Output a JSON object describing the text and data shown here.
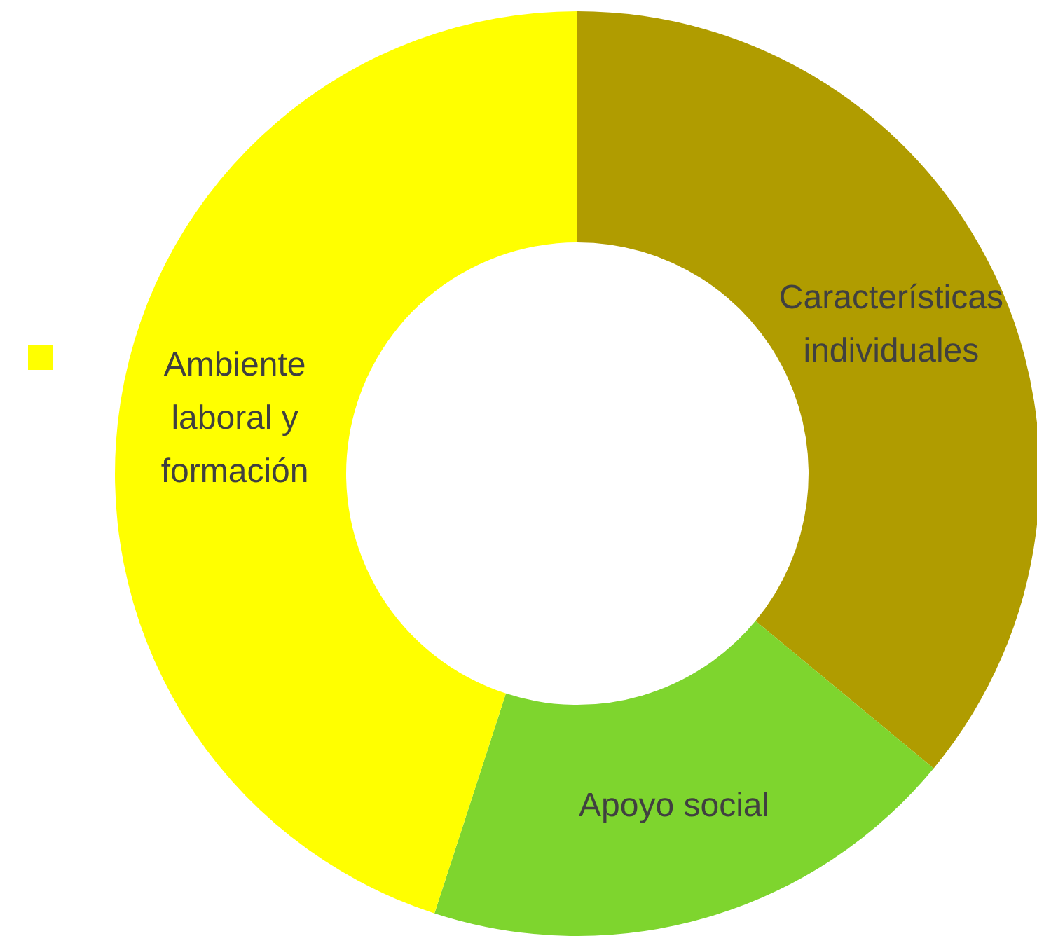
{
  "chart_data": {
    "type": "donut",
    "categories": [
      "Características individuales",
      "Apoyo social",
      "Ambiente laboral y formación"
    ],
    "values": [
      36,
      19,
      45
    ],
    "colors": [
      "#b09c00",
      "#7ed52e",
      "#ffff00"
    ],
    "legend": false
  }
}
